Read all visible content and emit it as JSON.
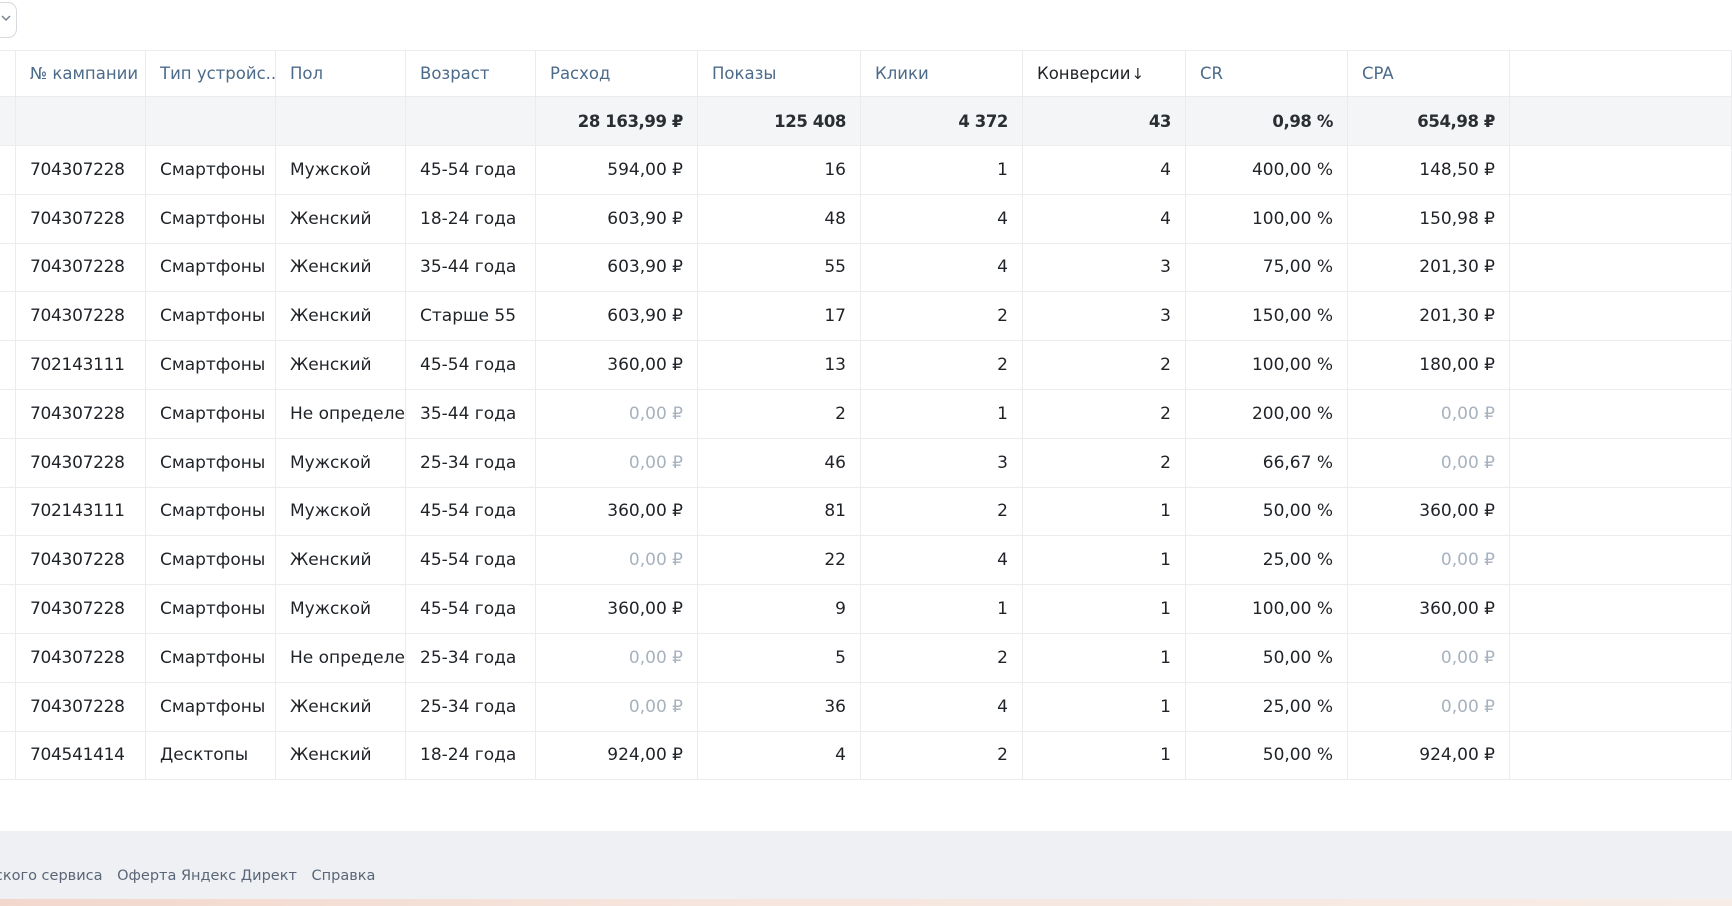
{
  "table": {
    "columns": [
      {
        "label": "№ кампании",
        "align": "left"
      },
      {
        "label": "Тип устройс...",
        "align": "left"
      },
      {
        "label": "Пол",
        "align": "left"
      },
      {
        "label": "Возраст",
        "align": "left"
      },
      {
        "label": "Расход",
        "align": "left"
      },
      {
        "label": "Показы",
        "align": "left"
      },
      {
        "label": "Клики",
        "align": "left"
      },
      {
        "label": "Конверсии",
        "align": "left",
        "sorted": "desc",
        "sort_icon": "↓"
      },
      {
        "label": "CR",
        "align": "left"
      },
      {
        "label": "CPA",
        "align": "left"
      }
    ],
    "totals": [
      "",
      "",
      "",
      "",
      "28 163,99 ₽",
      "125 408",
      "4 372",
      "43",
      "0,98 %",
      "654,98 ₽"
    ],
    "rows": [
      [
        "704307228",
        "Смартфоны",
        "Мужской",
        "45-54 года",
        "594,00 ₽",
        "16",
        "1",
        "4",
        "400,00 %",
        "148,50 ₽"
      ],
      [
        "704307228",
        "Смартфоны",
        "Женский",
        "18-24 года",
        "603,90 ₽",
        "48",
        "4",
        "4",
        "100,00 %",
        "150,98 ₽"
      ],
      [
        "704307228",
        "Смартфоны",
        "Женский",
        "35-44 года",
        "603,90 ₽",
        "55",
        "4",
        "3",
        "75,00 %",
        "201,30 ₽"
      ],
      [
        "704307228",
        "Смартфоны",
        "Женский",
        "Старше 55",
        "603,90 ₽",
        "17",
        "2",
        "3",
        "150,00 %",
        "201,30 ₽"
      ],
      [
        "702143111",
        "Смартфоны",
        "Женский",
        "45-54 года",
        "360,00 ₽",
        "13",
        "2",
        "2",
        "100,00 %",
        "180,00 ₽"
      ],
      [
        "704307228",
        "Смартфоны",
        "Не определен",
        "35-44 года",
        "0,00 ₽",
        "2",
        "1",
        "2",
        "200,00 %",
        "0,00 ₽"
      ],
      [
        "704307228",
        "Смартфоны",
        "Мужской",
        "25-34 года",
        "0,00 ₽",
        "46",
        "3",
        "2",
        "66,67 %",
        "0,00 ₽"
      ],
      [
        "702143111",
        "Смартфоны",
        "Мужской",
        "45-54 года",
        "360,00 ₽",
        "81",
        "2",
        "1",
        "50,00 %",
        "360,00 ₽"
      ],
      [
        "704307228",
        "Смартфоны",
        "Женский",
        "45-54 года",
        "0,00 ₽",
        "22",
        "4",
        "1",
        "25,00 %",
        "0,00 ₽"
      ],
      [
        "704307228",
        "Смартфоны",
        "Мужской",
        "45-54 года",
        "360,00 ₽",
        "9",
        "1",
        "1",
        "100,00 %",
        "360,00 ₽"
      ],
      [
        "704307228",
        "Смартфоны",
        "Не определен",
        "25-34 года",
        "0,00 ₽",
        "5",
        "2",
        "1",
        "50,00 %",
        "0,00 ₽"
      ],
      [
        "704307228",
        "Смартфоны",
        "Женский",
        "25-34 года",
        "0,00 ₽",
        "36",
        "4",
        "1",
        "25,00 %",
        "0,00 ₽"
      ],
      [
        "704541414",
        "Десктопы",
        "Женский",
        "18-24 года",
        "924,00 ₽",
        "4",
        "2",
        "1",
        "50,00 %",
        "924,00 ₽"
      ]
    ]
  },
  "footer": {
    "links": [
      "ентского сервиса",
      "Оферта Яндекс Директ",
      "Справка"
    ]
  },
  "colors": {
    "header_text": "#4c6b8a",
    "totals_bg": "#f4f5f7",
    "zero_value": "#a8b2bf",
    "footer_bg": "#eef0f3"
  }
}
